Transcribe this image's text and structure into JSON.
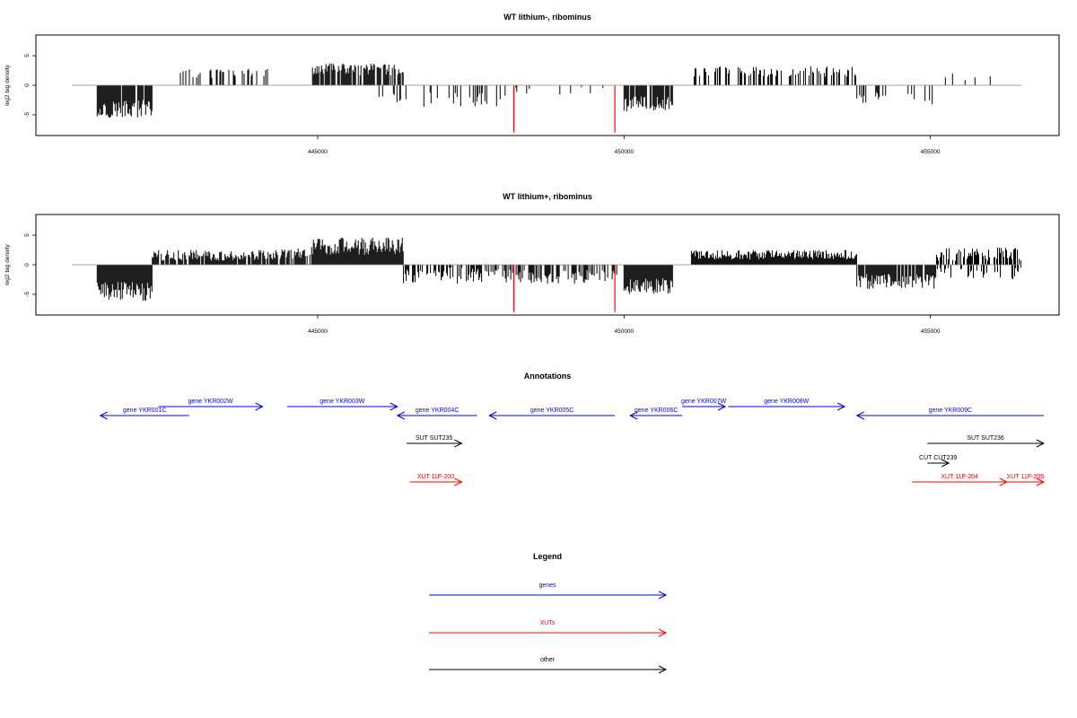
{
  "panels": [
    {
      "title": "WT lithium-, ribominus",
      "ylabel": "log2 tag density",
      "y_ticks": [
        -5,
        0,
        5
      ],
      "x_ticks": [
        445000,
        450000,
        455000
      ],
      "xlim": [
        440400,
        457100
      ],
      "ylim": [
        -8.5,
        8.5
      ],
      "highlight_color": "#ff0000",
      "data_color": "#000000",
      "chart_data": {
        "type": "bar",
        "title": "WT lithium-, ribominus",
        "xlabel": "",
        "ylabel": "log2 tag density",
        "xlim": [
          440400,
          457100
        ],
        "ylim": [
          -8.5,
          8.5
        ],
        "highlighted_bars": [
          {
            "x": 448200,
            "value": -8.0
          },
          {
            "x": 449850,
            "value": -8.0
          }
        ],
        "series": [
          {
            "segments": [
              {
                "x0": 441400,
                "x1": 442300,
                "y": -4.0,
                "v": 1.5,
                "d": 0.9
              },
              {
                "x0": 442700,
                "x1": 444200,
                "y": 2.0,
                "v": 0.8,
                "d": 0.3
              },
              {
                "x0": 444900,
                "x1": 446400,
                "y": 2.6,
                "v": 1.1,
                "d": 0.75
              },
              {
                "x0": 446000,
                "x1": 448000,
                "y": -2.5,
                "v": 1.3,
                "d": 0.15
              },
              {
                "x0": 448000,
                "x1": 449900,
                "y": -1.2,
                "v": 1.0,
                "d": 0.07
              },
              {
                "x0": 450000,
                "x1": 450800,
                "y": -3.2,
                "v": 1.3,
                "d": 0.85
              },
              {
                "x0": 450000,
                "x1": 450150,
                "y": 2.2,
                "v": 0.4,
                "d": 0.3
              },
              {
                "x0": 451100,
                "x1": 453800,
                "y": 2.3,
                "v": 0.9,
                "d": 0.42
              },
              {
                "x0": 453800,
                "x1": 455100,
                "y": -2.2,
                "v": 1.1,
                "d": 0.22
              },
              {
                "x0": 455200,
                "x1": 456300,
                "y": 1.2,
                "v": 1.0,
                "d": 0.05
              }
            ]
          }
        ]
      }
    },
    {
      "title": "WT lithium+, ribominus",
      "ylabel": "log2 tag density",
      "y_ticks": [
        -5,
        0,
        5
      ],
      "x_ticks": [
        445000,
        450000,
        455000
      ],
      "xlim": [
        440400,
        457100
      ],
      "ylim": [
        -8.5,
        8.5
      ],
      "highlight_color": "#ff0000",
      "data_color": "#000000",
      "chart_data": {
        "type": "bar",
        "title": "WT lithium+, ribominus",
        "xlabel": "",
        "ylabel": "log2 tag density",
        "xlim": [
          440400,
          457100
        ],
        "ylim": [
          -8.5,
          8.5
        ],
        "highlighted_bars": [
          {
            "x": 448200,
            "value": -8.0
          },
          {
            "x": 449850,
            "value": -8.0
          }
        ],
        "series": [
          {
            "segments": [
              {
                "x0": 441400,
                "x1": 442300,
                "y": -4.5,
                "v": 1.6,
                "d": 1.0
              },
              {
                "x0": 442300,
                "x1": 444300,
                "y": 1.6,
                "v": 0.9,
                "d": 0.85
              },
              {
                "x0": 444300,
                "x1": 444900,
                "y": 1.9,
                "v": 0.9,
                "d": 0.8
              },
              {
                "x0": 444900,
                "x1": 446400,
                "y": 3.2,
                "v": 1.5,
                "d": 1.0
              },
              {
                "x0": 446400,
                "x1": 447800,
                "y": -1.8,
                "v": 1.4,
                "d": 0.55
              },
              {
                "x0": 447800,
                "x1": 449900,
                "y": -2.0,
                "v": 1.2,
                "d": 0.55
              },
              {
                "x0": 450000,
                "x1": 450800,
                "y": -3.6,
                "v": 1.4,
                "d": 1.0
              },
              {
                "x0": 451100,
                "x1": 453800,
                "y": 1.7,
                "v": 0.8,
                "d": 1.0
              },
              {
                "x0": 453800,
                "x1": 455100,
                "y": -2.8,
                "v": 1.3,
                "d": 0.9
              },
              {
                "x0": 455100,
                "x1": 456500,
                "y": 1.8,
                "v": 1.1,
                "d": 0.7
              },
              {
                "x0": 455100,
                "x1": 456500,
                "y": -1.5,
                "v": 1.0,
                "d": 0.4
              }
            ]
          }
        ]
      }
    }
  ],
  "annotations": {
    "title": "Annotations",
    "features": [
      {
        "label": "gene YKR001C",
        "start": 441450,
        "end": 442900,
        "strand": "-",
        "kind": "gene",
        "row": 1
      },
      {
        "label": "gene YKR002W",
        "start": 442400,
        "end": 444100,
        "strand": "+",
        "kind": "gene",
        "row": 0
      },
      {
        "label": "gene YKR003W",
        "start": 444500,
        "end": 446300,
        "strand": "+",
        "kind": "gene",
        "row": 0
      },
      {
        "label": "gene YKR004C",
        "start": 446300,
        "end": 447600,
        "strand": "-",
        "kind": "gene",
        "row": 1
      },
      {
        "label": "gene YKR005C",
        "start": 447800,
        "end": 449850,
        "strand": "-",
        "kind": "gene",
        "row": 1
      },
      {
        "label": "gene YKR006C",
        "start": 450100,
        "end": 450950,
        "strand": "-",
        "kind": "gene",
        "row": 1
      },
      {
        "label": "gene YKR007W",
        "start": 450950,
        "end": 451650,
        "strand": "+",
        "kind": "gene",
        "row": 0
      },
      {
        "label": "gene YKR008W",
        "start": 451700,
        "end": 453600,
        "strand": "+",
        "kind": "gene",
        "row": 0
      },
      {
        "label": "gene YKR009C",
        "start": 453800,
        "end": 456850,
        "strand": "-",
        "kind": "gene",
        "row": 1
      },
      {
        "label": "SUT SUT235",
        "start": 446450,
        "end": 447350,
        "strand": "+",
        "kind": "other",
        "row": 2
      },
      {
        "label": "SUT SUT236",
        "start": 454950,
        "end": 456850,
        "strand": "+",
        "kind": "other",
        "row": 2
      },
      {
        "label": "CUT CUT239",
        "start": 454950,
        "end": 455300,
        "strand": "+",
        "kind": "other",
        "row": 3
      },
      {
        "label": "XUT 11F-200",
        "start": 446500,
        "end": 447350,
        "strand": "+",
        "kind": "xut",
        "row": 4
      },
      {
        "label": "XUT 11F-204",
        "start": 454700,
        "end": 456250,
        "strand": "+",
        "kind": "xut",
        "row": 4
      },
      {
        "label": "XUT 11F-205",
        "start": 456250,
        "end": 456850,
        "strand": "+",
        "kind": "xut",
        "row": 4
      }
    ]
  },
  "legend": {
    "title": "Legend",
    "items": [
      {
        "label": "genes",
        "color": "#0000ff"
      },
      {
        "label": "XUTs",
        "color": "#ff0000"
      },
      {
        "label": "other",
        "color": "#000000"
      }
    ]
  }
}
